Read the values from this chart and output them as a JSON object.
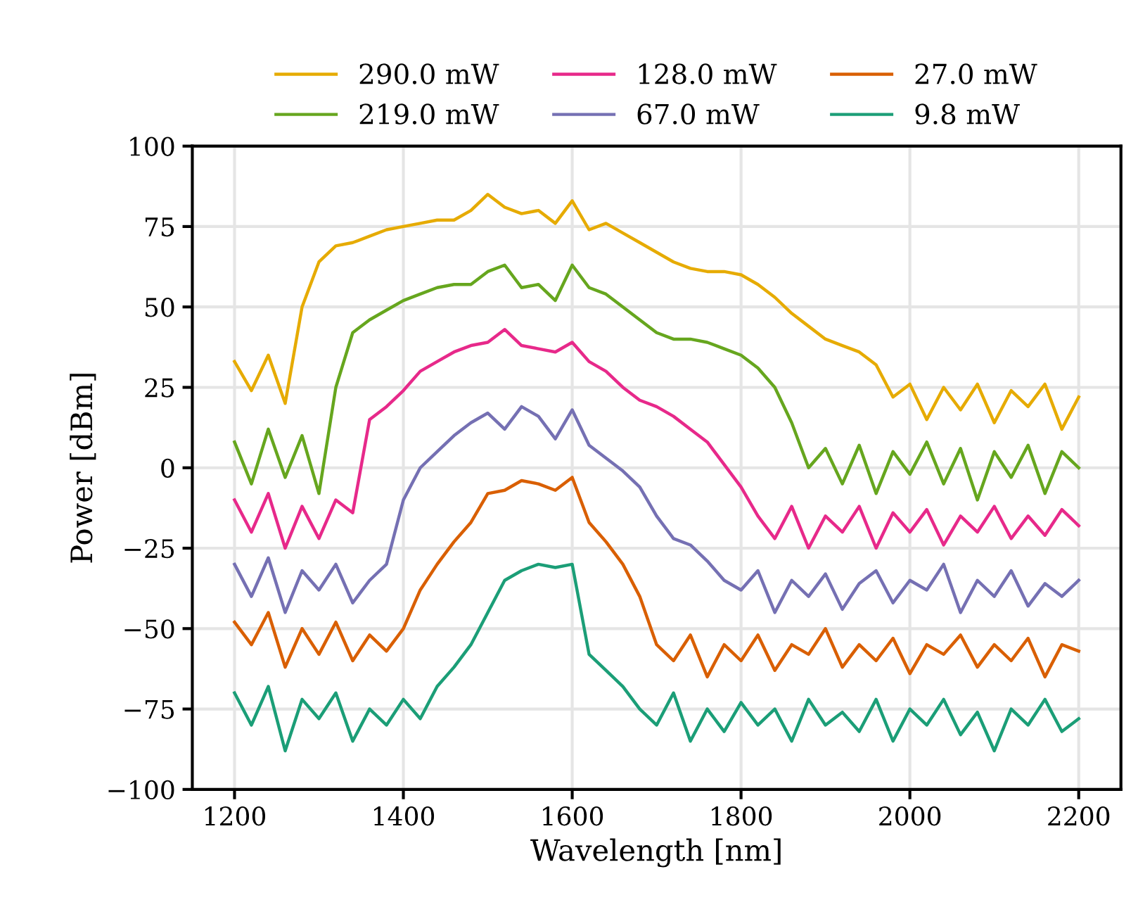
{
  "chart_data": {
    "type": "line",
    "xlabel": "Wavelength [nm]",
    "ylabel": "Power [dBm]",
    "xlim": [
      1150,
      2250
    ],
    "ylim": [
      -100,
      100
    ],
    "xticks": [
      1200,
      1400,
      1600,
      1800,
      2000,
      2200
    ],
    "yticks": [
      {
        "value": -100,
        "label": "−100"
      },
      {
        "value": -75,
        "label": "−75"
      },
      {
        "value": -50,
        "label": "−50"
      },
      {
        "value": -25,
        "label": "−25"
      },
      0,
      25,
      50,
      75,
      100
    ],
    "grid": true,
    "legend": "top",
    "marker": "none",
    "line_style": "solid",
    "x": [
      1200,
      1220,
      1240,
      1260,
      1280,
      1300,
      1320,
      1340,
      1360,
      1380,
      1400,
      1420,
      1440,
      1460,
      1480,
      1500,
      1520,
      1540,
      1560,
      1580,
      1600,
      1620,
      1640,
      1660,
      1680,
      1700,
      1720,
      1740,
      1760,
      1780,
      1800,
      1820,
      1840,
      1860,
      1880,
      1900,
      1920,
      1940,
      1960,
      1980,
      2000,
      2020,
      2040,
      2060,
      2080,
      2100,
      2120,
      2140,
      2160,
      2180,
      2200
    ],
    "series": [
      {
        "name": "290.0 mW",
        "color": "#e6ab02",
        "values": [
          33,
          24,
          35,
          20,
          50,
          64,
          69,
          70,
          72,
          74,
          75,
          76,
          77,
          77,
          80,
          85,
          81,
          79,
          80,
          76,
          83,
          74,
          76,
          73,
          70,
          67,
          64,
          62,
          61,
          61,
          60,
          57,
          53,
          48,
          44,
          40,
          38,
          36,
          32,
          22,
          26,
          15,
          25,
          18,
          26,
          14,
          24,
          19,
          26,
          12,
          22
        ]
      },
      {
        "name": "219.0 mW",
        "color": "#66a61e",
        "values": [
          8,
          -5,
          12,
          -3,
          10,
          -8,
          25,
          42,
          46,
          49,
          52,
          54,
          56,
          57,
          57,
          61,
          63,
          56,
          57,
          52,
          63,
          56,
          54,
          50,
          46,
          42,
          40,
          40,
          39,
          37,
          35,
          31,
          25,
          14,
          0,
          6,
          -5,
          7,
          -8,
          5,
          -2,
          8,
          -5,
          6,
          -10,
          5,
          -3,
          7,
          -8,
          5,
          0
        ]
      },
      {
        "name": "128.0 mW",
        "color": "#e7298a",
        "values": [
          -10,
          -20,
          -8,
          -25,
          -12,
          -22,
          -10,
          -14,
          15,
          19,
          24,
          30,
          33,
          36,
          38,
          39,
          43,
          38,
          37,
          36,
          39,
          33,
          30,
          25,
          21,
          19,
          16,
          12,
          8,
          1,
          -6,
          -15,
          -22,
          -12,
          -25,
          -15,
          -20,
          -12,
          -25,
          -14,
          -20,
          -13,
          -24,
          -15,
          -20,
          -12,
          -22,
          -15,
          -21,
          -13,
          -18
        ]
      },
      {
        "name": "67.0 mW",
        "color": "#7570b3",
        "values": [
          -30,
          -40,
          -28,
          -45,
          -32,
          -38,
          -30,
          -42,
          -35,
          -30,
          -10,
          0,
          5,
          10,
          14,
          17,
          12,
          19,
          16,
          9,
          18,
          7,
          3,
          -1,
          -6,
          -15,
          -22,
          -24,
          -29,
          -35,
          -38,
          -32,
          -45,
          -35,
          -40,
          -33,
          -44,
          -36,
          -32,
          -42,
          -35,
          -38,
          -30,
          -45,
          -35,
          -40,
          -32,
          -43,
          -36,
          -40,
          -35
        ]
      },
      {
        "name": "27.0 mW",
        "color": "#d95f02",
        "values": [
          -48,
          -55,
          -45,
          -62,
          -50,
          -58,
          -48,
          -60,
          -52,
          -57,
          -50,
          -38,
          -30,
          -23,
          -17,
          -8,
          -7,
          -4,
          -5,
          -7,
          -3,
          -17,
          -23,
          -30,
          -40,
          -55,
          -60,
          -52,
          -65,
          -55,
          -60,
          -52,
          -63,
          -55,
          -58,
          -50,
          -62,
          -55,
          -60,
          -53,
          -64,
          -55,
          -58,
          -52,
          -62,
          -55,
          -60,
          -53,
          -65,
          -55,
          -57
        ]
      },
      {
        "name": "9.8 mW",
        "color": "#1b9e77",
        "values": [
          -70,
          -80,
          -68,
          -88,
          -72,
          -78,
          -70,
          -85,
          -75,
          -80,
          -72,
          -78,
          -68,
          -62,
          -55,
          -45,
          -35,
          -32,
          -30,
          -31,
          -30,
          -58,
          -63,
          -68,
          -75,
          -80,
          -70,
          -85,
          -75,
          -82,
          -73,
          -80,
          -75,
          -85,
          -72,
          -80,
          -76,
          -82,
          -72,
          -85,
          -75,
          -80,
          -72,
          -83,
          -76,
          -88,
          -75,
          -80,
          -72,
          -82,
          -78
        ]
      }
    ]
  }
}
